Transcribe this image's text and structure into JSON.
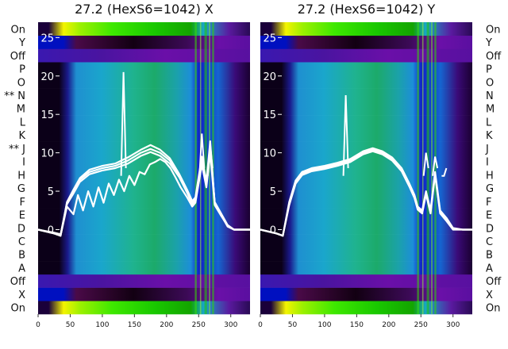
{
  "chart_data": {
    "type": "heatmap",
    "row_labels": [
      "On",
      "X",
      "Off",
      "A",
      "B",
      "C",
      "D",
      "E",
      "F",
      "G",
      "H",
      "I",
      "J",
      "K",
      "L",
      "M",
      "N",
      "O",
      "P",
      "Off",
      "Y",
      "On"
    ],
    "x_ticks": [
      0,
      50,
      100,
      150,
      200,
      250,
      300
    ],
    "xlim": [
      0,
      330
    ],
    "overlay_ylim": [
      -11,
      27
    ],
    "overlay_yticks": [
      0,
      5,
      10,
      15,
      20,
      25
    ],
    "panels": [
      {
        "title": "27.2 (HexS6=1042) X",
        "left_labels": [
          "On",
          "Y",
          "Off",
          "P",
          "O",
          "** N",
          "M",
          "L",
          "K",
          "** J",
          "I",
          "H",
          "G",
          "F",
          "E",
          "D",
          "C",
          "B",
          "A",
          "Off",
          "X",
          "On"
        ],
        "show_right_labels": false,
        "series": [
          {
            "x": [
              0,
              25,
              35,
              45,
              55,
              65,
              80,
              100,
              120,
              140,
              160,
              175,
              190,
              205,
              220,
              232,
              240,
              245,
              255,
              262,
              268,
              275,
              285,
              295,
              305,
              315,
              330
            ],
            "y": [
              0,
              -0.5,
              -0.8,
              3.5,
              5,
              6.5,
              7.5,
              8,
              8.3,
              9,
              10,
              10.5,
              10,
              9,
              7,
              5,
              3.5,
              4,
              9,
              6,
              11,
              3.5,
              2,
              0.5,
              0,
              0,
              0
            ]
          },
          {
            "x": [
              0,
              25,
              35,
              45,
              55,
              65,
              80,
              100,
              120,
              140,
              160,
              175,
              190,
              205,
              220,
              232,
              240,
              245,
              255,
              262,
              268,
              275,
              285,
              295,
              305,
              315,
              330
            ],
            "y": [
              0,
              -0.5,
              -0.8,
              3.6,
              5.2,
              6.7,
              7.8,
              8.3,
              8.6,
              9.4,
              10.4,
              11,
              10.4,
              9.3,
              7.2,
              5.2,
              3.7,
              4.2,
              9.5,
              6.2,
              11.5,
              3.4,
              1.9,
              0.4,
              0,
              0,
              0
            ]
          },
          {
            "x": [
              0,
              25,
              35,
              45,
              55,
              65,
              80,
              100,
              120,
              140,
              160,
              175,
              190,
              205,
              220,
              232,
              240,
              245,
              255,
              262,
              268,
              275,
              285,
              295,
              305,
              315,
              330
            ],
            "y": [
              0,
              -0.4,
              -0.6,
              3.3,
              4.7,
              6.2,
              7.2,
              7.7,
              8,
              8.6,
              9.6,
              10.1,
              9.6,
              8.6,
              6.8,
              4.8,
              3.3,
              3.8,
              8.5,
              5.8,
              10.5,
              3.6,
              2.1,
              0.6,
              0,
              0,
              0
            ]
          },
          {
            "x": [
              0,
              25,
              35,
              45,
              55,
              62,
              70,
              78,
              86,
              94,
              102,
              110,
              118,
              126,
              134,
              142,
              150,
              158,
              166,
              174,
              182,
              190,
              198,
              206,
              214,
              222,
              232,
              240,
              245,
              255,
              262,
              268,
              275,
              285,
              295,
              305,
              315,
              330
            ],
            "y": [
              0,
              -0.5,
              -0.8,
              3,
              2,
              4.5,
              2.5,
              5,
              3,
              5.5,
              3.5,
              6,
              4.5,
              6.5,
              5,
              7,
              5.8,
              7.5,
              7.2,
              8.5,
              8.8,
              9.2,
              8.8,
              8,
              6.8,
              5.5,
              4.2,
              3,
              3.5,
              8.5,
              5.5,
              10,
              3.2,
              1.8,
              0.5,
              0,
              0,
              0
            ]
          }
        ],
        "spikes": [
          {
            "x": 133,
            "y": 20.5
          },
          {
            "x": 255,
            "y": 12.5
          },
          {
            "x": 268,
            "y": 11
          }
        ]
      },
      {
        "title": "27.2 (HexS6=1042) Y",
        "left_labels": [],
        "show_right_labels": true,
        "series": [
          {
            "x": [
              0,
              25,
              35,
              45,
              55,
              65,
              80,
              100,
              120,
              140,
              160,
              175,
              190,
              205,
              220,
              232,
              240,
              245,
              252,
              258,
              265,
              272,
              280,
              290,
              300,
              315,
              330
            ],
            "y": [
              0,
              -0.5,
              -0.8,
              3.6,
              6.4,
              7.5,
              8,
              8.3,
              8.7,
              9.2,
              10.2,
              10.6,
              10.2,
              9.4,
              8,
              6,
              4.5,
              3,
              2.5,
              5,
              2.5,
              7.5,
              2.5,
              1.5,
              0.2,
              0,
              0
            ]
          },
          {
            "x": [
              0,
              25,
              35,
              45,
              55,
              65,
              80,
              100,
              120,
              140,
              160,
              175,
              190,
              205,
              220,
              232,
              240,
              245,
              252,
              258,
              265,
              272,
              280,
              290,
              300,
              315,
              330
            ],
            "y": [
              0,
              -0.5,
              -0.8,
              3.2,
              6,
              7.1,
              7.6,
              7.9,
              8.3,
              8.8,
              9.8,
              10.2,
              9.8,
              9,
              7.6,
              5.6,
              4.1,
              2.6,
              2.1,
              4.6,
              2.1,
              7.1,
              2.1,
              1.1,
              0,
              0,
              0
            ]
          },
          {
            "x": [
              0,
              25,
              35,
              45,
              55,
              65,
              80,
              100,
              120,
              140,
              160,
              175,
              190,
              205,
              220,
              232,
              240,
              245,
              252,
              258,
              265,
              272,
              280,
              290,
              300,
              315,
              330
            ],
            "y": [
              0,
              -0.5,
              -0.8,
              3.4,
              6.2,
              7.3,
              7.8,
              8.1,
              8.5,
              9,
              10,
              10.4,
              10,
              9.2,
              7.8,
              5.8,
              4.3,
              2.8,
              2.3,
              4.8,
              2.3,
              7.3,
              2.3,
              1.3,
              0.1,
              0,
              0
            ]
          }
        ],
        "spikes": [
          {
            "x": 133,
            "y": 17.5
          },
          {
            "x": 258,
            "y": 10
          },
          {
            "x": 272,
            "y": 9.5
          },
          {
            "x": 286,
            "y": 7
          }
        ]
      }
    ]
  }
}
